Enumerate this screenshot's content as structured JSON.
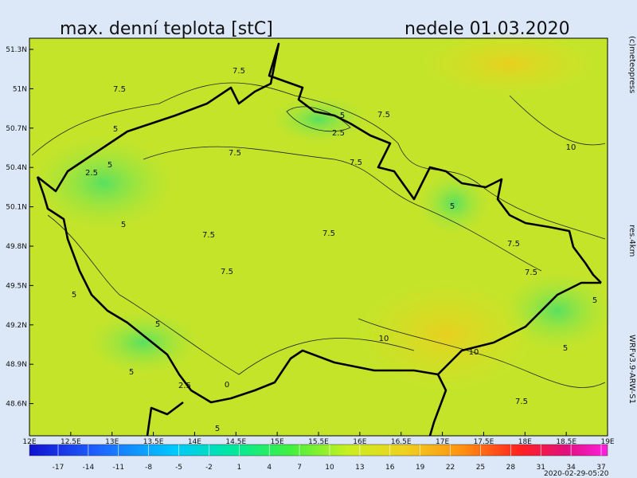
{
  "header": {
    "title": "max. denní teplota [stC]",
    "date": "nedele 01.03.2020"
  },
  "credits": {
    "copyright": "(c)meteopress",
    "resolution": "res.4km",
    "model": "WRFv3.9-ARW-S1",
    "timestamp": "2020-02-29-05:20"
  },
  "map": {
    "lat_labels": [
      "51.3N",
      "51N",
      "50.7N",
      "50.4N",
      "50.1N",
      "49.8N",
      "49.5N",
      "49.2N",
      "48.9N",
      "48.6N"
    ],
    "lon_labels": [
      "12E",
      "12.5E",
      "13E",
      "13.5E",
      "14E",
      "14.5E",
      "15E",
      "15.5E",
      "16E",
      "16.5E",
      "17E",
      "17.5E",
      "18E",
      "18.5E",
      "19E"
    ],
    "contour_labels": [
      "7.5",
      "7.5",
      "5",
      "2.5",
      "7.5",
      "5",
      "7.5",
      "2.5",
      "5",
      "7.5",
      "7.5",
      "7.5",
      "7.5",
      "10",
      "5",
      "7.5",
      "7.5",
      "5",
      "5",
      "5",
      "5",
      "10",
      "10",
      "2.5",
      "0",
      "5",
      "5",
      "7.5",
      "5"
    ]
  },
  "colorbar": {
    "ticks": [
      -17,
      -14,
      -11,
      -8,
      -5,
      -2,
      1,
      4,
      7,
      10,
      13,
      16,
      19,
      22,
      25,
      28,
      31,
      34,
      37
    ]
  }
}
